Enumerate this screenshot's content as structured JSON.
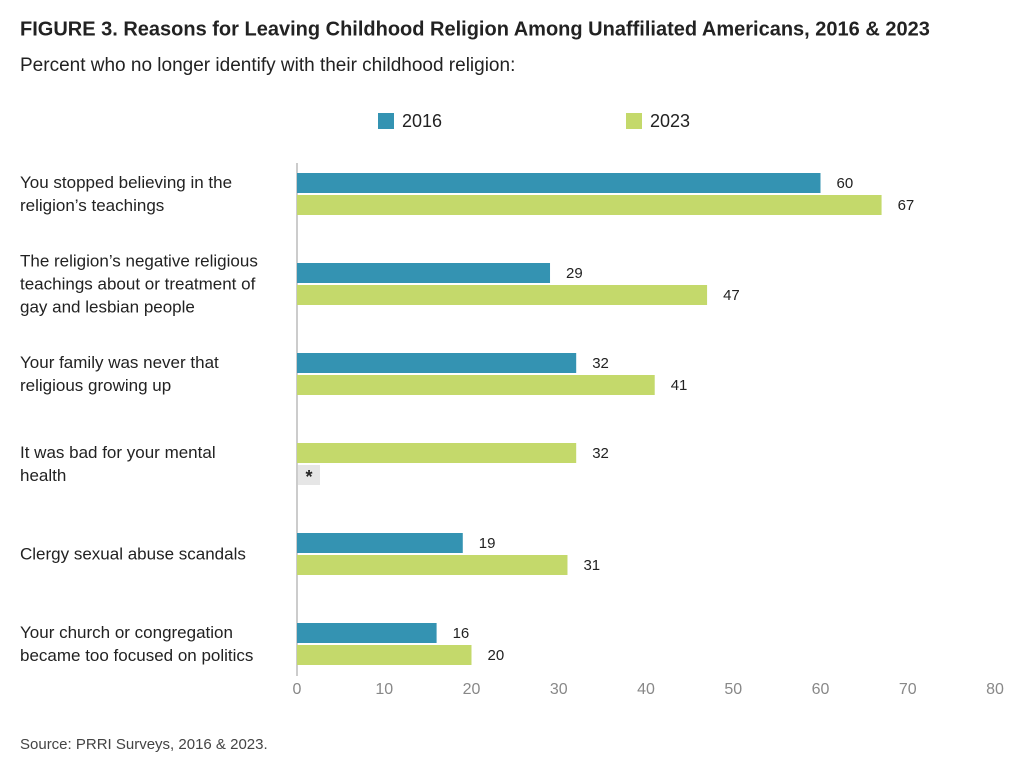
{
  "chart_data": {
    "type": "hbar",
    "title": "FIGURE 3. Reasons for Leaving Childhood Religion Among Unaffiliated Americans, 2016 & 2023",
    "subtitle": "Percent who no longer identify with their childhood religion:",
    "categories": [
      "You stopped believing in the\nreligion’s teachings",
      "The religion’s negative religious\nteachings about or treatment of\ngay and lesbian people",
      "Your family was never that\nreligious growing up",
      "It was bad for your mental\nhealth",
      "Clergy sexual abuse scandals",
      "Your church or congregation\nbecame too focused on politics"
    ],
    "series": [
      {
        "name": "2016",
        "color": "#3493b2",
        "values": [
          60,
          29,
          32,
          null,
          19,
          16
        ],
        "value_labels": [
          null,
          null,
          null,
          "*",
          null,
          null
        ]
      },
      {
        "name": "2023",
        "color": "#c4d96b",
        "values": [
          67,
          47,
          41,
          32,
          31,
          20
        ]
      }
    ],
    "xlim": [
      0,
      80
    ],
    "xticks": [
      0,
      10,
      20,
      30,
      40,
      50,
      60,
      70,
      80
    ],
    "source": "Source: PRRI Surveys, 2016 & 2023."
  }
}
